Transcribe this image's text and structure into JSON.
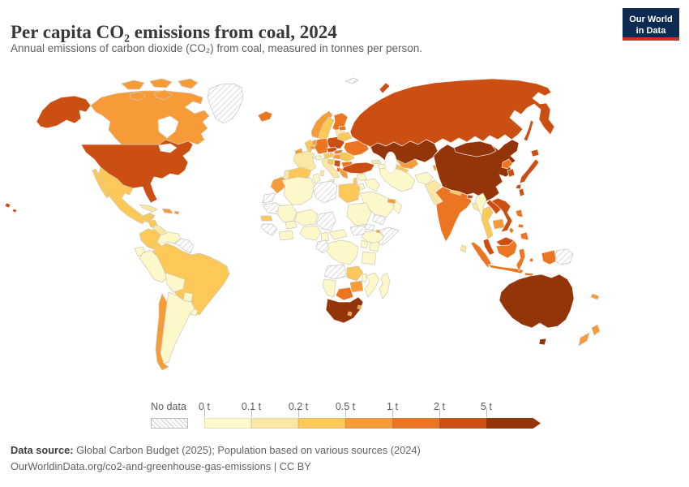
{
  "header": {
    "title": "Per capita CO₂ emissions from coal, 2024",
    "subtitle": "Annual emissions of carbon dioxide (CO₂) from coal, measured in tonnes per person.",
    "logo_line1": "Our World",
    "logo_line2": "in Data"
  },
  "legend": {
    "no_data_label": "No data",
    "tick_labels": [
      "0 t",
      "0.1 t",
      "0.2 t",
      "0.5 t",
      "1 t",
      "2 t",
      "5 t"
    ],
    "colors": [
      "#FDF8C9",
      "#FBE7A4",
      "#FCC858",
      "#F79B39",
      "#EC7523",
      "#CB4E12",
      "#933509"
    ],
    "accent_navy": "#0d2a52",
    "accent_red": "#cd3025"
  },
  "footer": {
    "source_label": "Data source:",
    "source_text": " Global Carbon Budget (2025); Population based on various sources (2024)",
    "link_line": "OurWorldinData.org/co2-and-greenhouse-gas-emissions | CC BY"
  },
  "chart_data": {
    "type": "choropleth",
    "title": "Per capita CO₂ emissions from coal, 2024",
    "unit": "tonnes per person",
    "bin_edges": [
      0,
      0.1,
      0.2,
      0.5,
      1,
      2,
      5
    ],
    "bins": [
      "0-0.1 t",
      "0.1-0.2 t",
      "0.2-0.5 t",
      "0.5-1 t",
      "1-2 t",
      "2-5 t",
      "5+ t"
    ],
    "no_data_value": "nd",
    "countries": {
      "united-states": 5,
      "canada": 3,
      "greenland": "nd",
      "mexico": 2,
      "guatemala": 2,
      "central-america": 1,
      "cuba": 1,
      "jamaica": 2,
      "dominican-republic": 3,
      "puerto-rico": 3,
      "colombia": 2,
      "venezuela": 0,
      "guyana-suriname": "nd",
      "ecuador": 0,
      "peru": 0,
      "brazil": 2,
      "bolivia": 0,
      "paraguay": 0,
      "uruguay": 0,
      "argentina": 0,
      "chile": 3,
      "iceland": 4,
      "ireland": 3,
      "united-kingdom": 2,
      "norway": 3,
      "sweden": 2,
      "finland": 4,
      "denmark": 3,
      "baltic-states": 1,
      "estonia": 4,
      "poland": 5,
      "germany": 4,
      "netherlands": 3,
      "belgium": 3,
      "france": 1,
      "spain": 2,
      "portugal": 1,
      "switzerland": 0,
      "italy": 1,
      "austria": 2,
      "czechia": 5,
      "slovakia": 4,
      "hungary": 3,
      "croatia": 2,
      "serbia-bosnia": 5,
      "albania": 4,
      "romania": 2,
      "bulgaria": 4,
      "greece": 3,
      "ukraine": 4,
      "belarus": 2,
      "russia": 5,
      "svalbard": "nd",
      "kazakhstan": 6,
      "uzbekistan": 3,
      "turkmenistan": 2,
      "kyrgyzstan": 4,
      "tajikistan": 3,
      "georgia": 1,
      "azerbaijan": 0,
      "turkey": 5,
      "syria": 0,
      "israel-lebanon": 2,
      "jordan": 0,
      "iraq": 0,
      "iran": 0,
      "afghanistan": 0,
      "pakistan": 1,
      "saudi-arabia": 0,
      "uae": 3,
      "oman": 0,
      "yemen": "nd",
      "india": 4,
      "nepal": 2,
      "bhutan": 5,
      "bangladesh": 1,
      "sri-lanka": 1,
      "myanmar": 0,
      "thailand": 2,
      "laos": 5,
      "vietnam": 5,
      "cambodia": 3,
      "malaysia": 5,
      "indonesia": 4,
      "papua-new-guinea": "nd",
      "philippines": 4,
      "china": 6,
      "mongolia": 6,
      "taiwan": 5,
      "north-korea": 4,
      "south-korea": 5,
      "japan": 5,
      "morocco": 3,
      "western-sahara": "nd",
      "mauritania": "nd",
      "senegal": 2,
      "guinea-group": "nd",
      "mali": 0,
      "burkina-faso": 0,
      "ivory-coast-ghana": 0,
      "algeria": 0,
      "tunisia": 0,
      "libya": "nd",
      "egypt": 2,
      "niger": 0,
      "chad": "nd",
      "nigeria": 0,
      "cameroon": 0,
      "central-african-republic": 0,
      "sudan": 0,
      "south-sudan": "nd",
      "eritrea": "nd",
      "ethiopia": 0,
      "somalia": "nd",
      "djibouti": 3,
      "kenya": 0,
      "uganda": 0,
      "drc": 0,
      "congo-gabon": "nd",
      "tanzania": 0,
      "angola": "nd",
      "zambia": 2,
      "malawi": 0,
      "mozambique": 0,
      "zimbabwe": 3,
      "botswana": 4,
      "namibia": 0,
      "south-africa": 6,
      "eswatini": 3,
      "lesotho": 3,
      "madagascar": 0,
      "australia": 6,
      "new-zealand": 3,
      "new-caledonia": 3
    }
  }
}
